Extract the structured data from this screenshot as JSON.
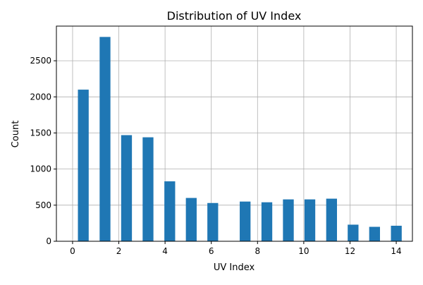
{
  "chart_data": {
    "type": "bar",
    "title": "Distribution of UV Index",
    "xlabel": "UV Index",
    "ylabel": "Count",
    "grid": true,
    "legend": "none",
    "bar_color": "#1f77b4",
    "xlim": [
      -0.7,
      14.7
    ],
    "ylim": [
      0,
      2980
    ],
    "x_ticks": [
      0,
      2,
      4,
      6,
      8,
      10,
      12,
      14
    ],
    "y_ticks": [
      0,
      500,
      1000,
      1500,
      2000,
      2500
    ],
    "bin_width": 0.467,
    "bins": [
      {
        "x": 0.23,
        "count": 2100
      },
      {
        "x": 1.17,
        "count": 2830
      },
      {
        "x": 2.1,
        "count": 1470
      },
      {
        "x": 3.03,
        "count": 1440
      },
      {
        "x": 3.97,
        "count": 830
      },
      {
        "x": 4.9,
        "count": 600
      },
      {
        "x": 5.83,
        "count": 530
      },
      {
        "x": 7.23,
        "count": 550
      },
      {
        "x": 8.17,
        "count": 540
      },
      {
        "x": 9.1,
        "count": 580
      },
      {
        "x": 10.03,
        "count": 580
      },
      {
        "x": 10.97,
        "count": 590
      },
      {
        "x": 11.9,
        "count": 230
      },
      {
        "x": 12.83,
        "count": 200
      },
      {
        "x": 13.77,
        "count": 215
      }
    ]
  }
}
